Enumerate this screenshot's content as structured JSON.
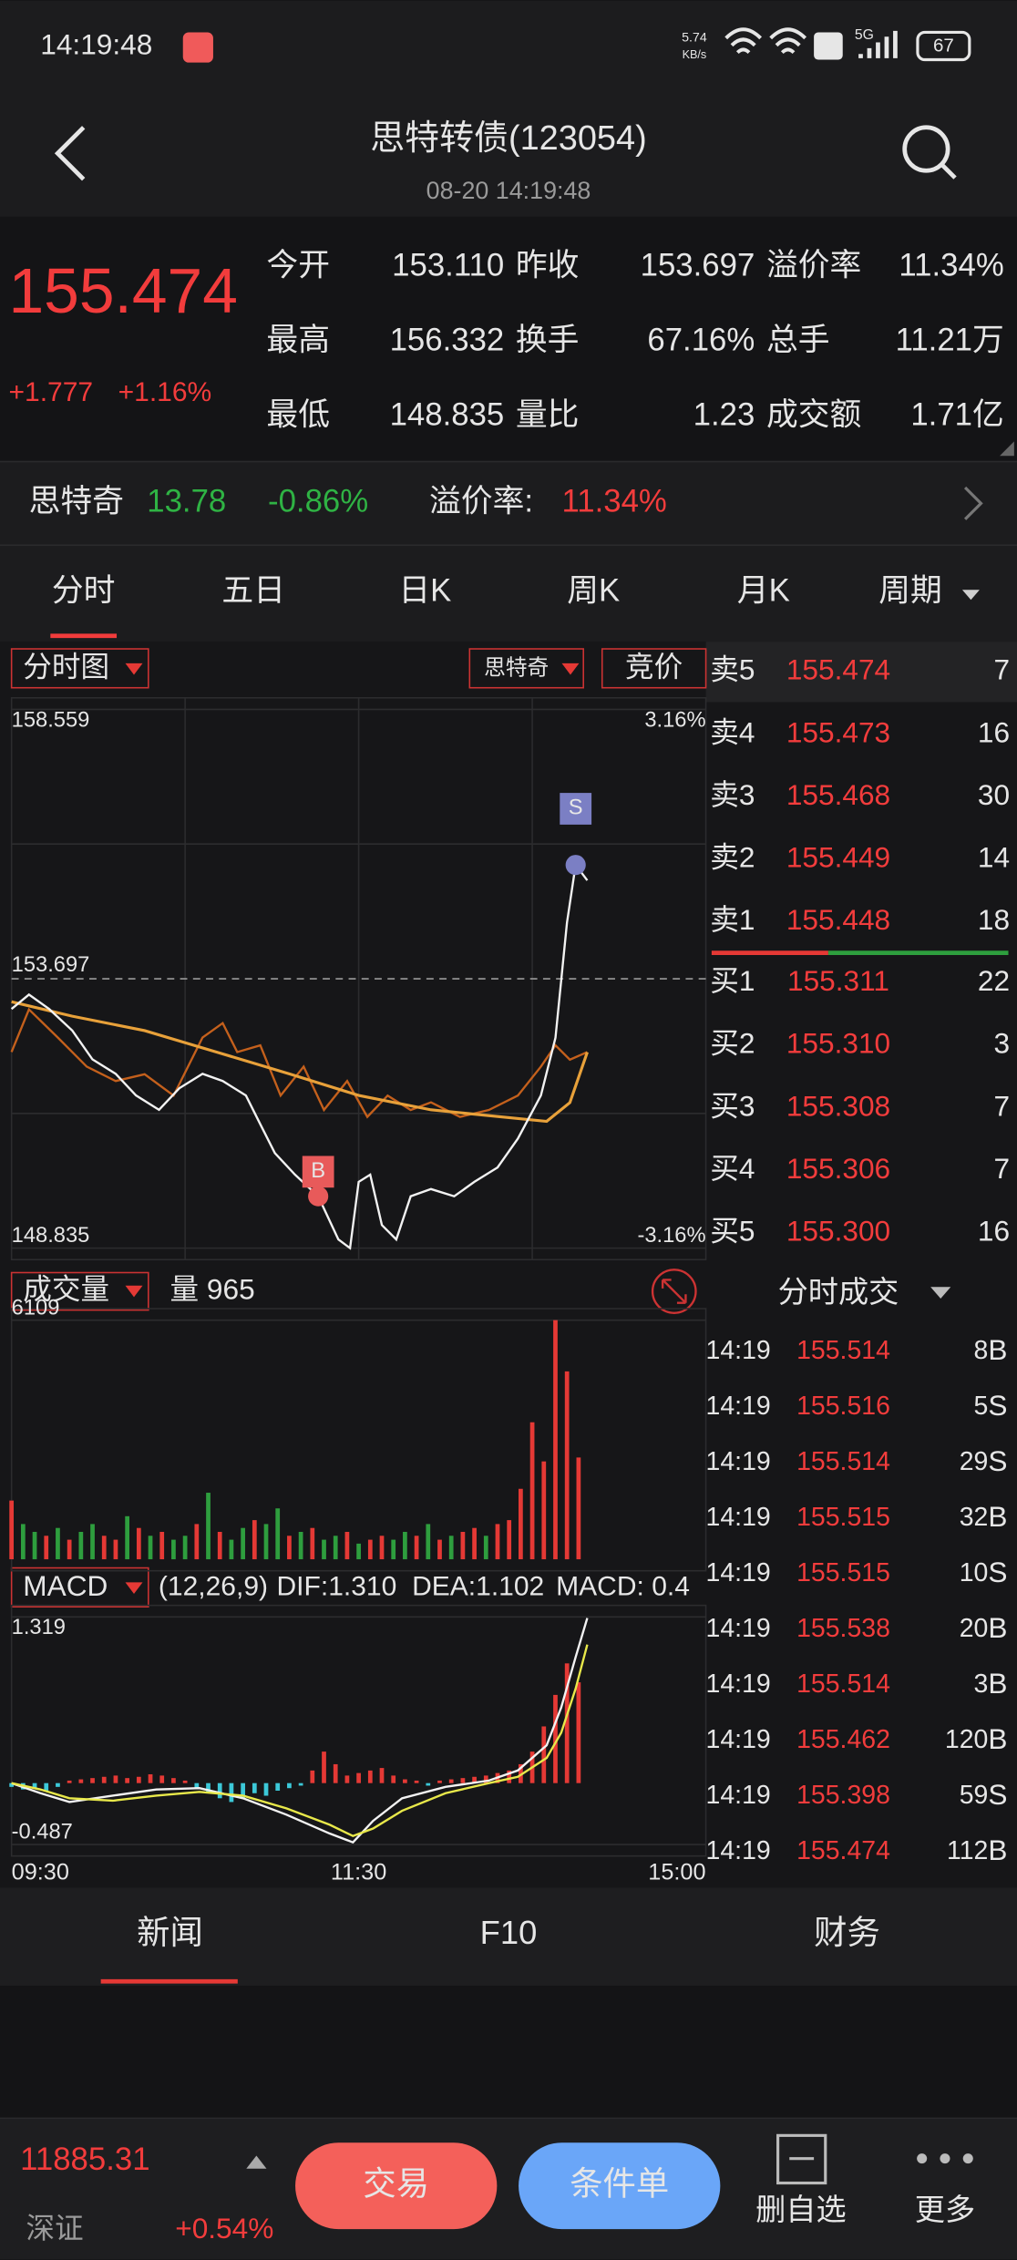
{
  "status": {
    "time": "14:19:48",
    "speed": "5.74",
    "speed_unit": "KB/s",
    "network": "5G",
    "battery": "67"
  },
  "header": {
    "title": "思特转债(123054)",
    "subtitle": "08-20 14:19:48"
  },
  "quote": {
    "price": "155.474",
    "change": "+1.777",
    "change_pct": "+1.16%",
    "fields": [
      {
        "label": "今开",
        "value": "153.110",
        "color": "#2fb344"
      },
      {
        "label": "昨收",
        "value": "153.697",
        "color": "#e6e6e6"
      },
      {
        "label": "溢价率",
        "value": "11.34%",
        "color": "#e6e6e6"
      },
      {
        "label": "最高",
        "value": "156.332",
        "color": "#f23c3c"
      },
      {
        "label": "换手",
        "value": "67.16%",
        "color": "#e6e6e6"
      },
      {
        "label": "总手",
        "value": "11.21万",
        "color": "#e6e6e6"
      },
      {
        "label": "最低",
        "value": "148.835",
        "color": "#2fb344"
      },
      {
        "label": "量比",
        "value": "1.23",
        "color": "#f23c3c"
      },
      {
        "label": "成交额",
        "value": "1.71亿",
        "color": "#e6e6e6"
      }
    ]
  },
  "stock": {
    "name": "思特奇",
    "price": "13.78",
    "change": "-0.86%",
    "premium_label": "溢价率:",
    "premium": "11.34%"
  },
  "tabs": {
    "items": [
      "分时",
      "五日",
      "日K",
      "周K",
      "月K",
      "周期"
    ],
    "active": 0
  },
  "chart_data": [
    {
      "type": "line",
      "selector": "分时图",
      "compare": "思特奇",
      "auction": "竞价",
      "xlim": [
        0,
        240
      ],
      "xgrid": [
        60,
        120,
        180
      ],
      "ylim": [
        148.835,
        158.559
      ],
      "yticks": [
        158.559,
        153.697,
        148.835
      ],
      "ygrid": [
        156.128,
        151.266
      ],
      "y2lim": [
        -3.16,
        3.16
      ],
      "y2ticks": [
        {
          "value": 3.16,
          "label": "3.16%"
        },
        {
          "value": -3.16,
          "label": "-3.16%"
        }
      ],
      "series": [
        {
          "color": "#f2f2f2",
          "x": [
            0,
            6,
            13,
            21,
            28,
            36,
            43,
            51,
            58,
            66,
            73,
            81,
            86,
            91,
            98,
            106,
            113,
            117,
            120,
            124,
            128,
            133,
            138,
            145,
            153,
            160,
            168,
            175,
            183,
            188,
            192,
            195,
            199
          ],
          "values": [
            153.151,
            153.411,
            153.151,
            152.761,
            152.241,
            151.981,
            151.591,
            151.331,
            151.721,
            151.981,
            151.851,
            151.591,
            151.071,
            150.551,
            150.161,
            149.771,
            148.991,
            148.835,
            150.031,
            150.161,
            149.251,
            148.991,
            149.771,
            149.901,
            149.771,
            150.031,
            150.291,
            150.811,
            151.591,
            152.631,
            154.711,
            155.751,
            155.474
          ]
        },
        {
          "color": "#e8a13a",
          "x": [
            0,
            21,
            46,
            71,
            96,
            120,
            145,
            170,
            185,
            193,
            199
          ],
          "values": [
            153.281,
            153.021,
            152.761,
            152.371,
            151.981,
            151.591,
            151.331,
            151.201,
            151.123,
            151.461,
            152.371
          ]
        },
        {
          "color": "#c4601c",
          "axis": "y2",
          "x": [
            0,
            6,
            16,
            26,
            36,
            46,
            56,
            66,
            73,
            78,
            86,
            93,
            101,
            108,
            116,
            123,
            130,
            138,
            145,
            155,
            165,
            175,
            183,
            188,
            193,
            199
          ],
          "values": [
            -0.86,
            -0.36,
            -0.69,
            -1.03,
            -1.2,
            -1.12,
            -1.37,
            -0.69,
            -0.52,
            -0.86,
            -0.78,
            -1.37,
            -1.03,
            -1.54,
            -1.2,
            -1.62,
            -1.37,
            -1.54,
            -1.45,
            -1.62,
            -1.54,
            -1.37,
            -1.03,
            -0.78,
            -0.95,
            -0.86
          ]
        }
      ],
      "annotations": [
        {
          "label": "B",
          "x": 106,
          "value": 149.771,
          "color": "#e85a5a"
        },
        {
          "label": "S",
          "x": 195,
          "value": 155.751,
          "color": "#7b7fc4"
        }
      ]
    },
    {
      "type": "bar",
      "selector": "成交量",
      "volume_label": "量 965",
      "xlim": [
        0,
        240
      ],
      "ylim": [
        0,
        6109
      ],
      "yticks": [
        6109
      ],
      "x": [
        0,
        4,
        8,
        12,
        16,
        20,
        24,
        28,
        32,
        36,
        40,
        44,
        48,
        52,
        56,
        60,
        64,
        68,
        72,
        76,
        80,
        84,
        88,
        92,
        96,
        100,
        104,
        108,
        112,
        116,
        120,
        124,
        128,
        132,
        136,
        140,
        144,
        148,
        152,
        156,
        160,
        164,
        168,
        172,
        176,
        180,
        184,
        188,
        192,
        196
      ],
      "values": [
        1500,
        900,
        700,
        600,
        800,
        500,
        700,
        900,
        600,
        500,
        1100,
        800,
        600,
        700,
        500,
        600,
        900,
        1700,
        700,
        500,
        800,
        1000,
        900,
        1300,
        600,
        700,
        800,
        500,
        600,
        700,
        400,
        500,
        600,
        500,
        700,
        600,
        900,
        500,
        600,
        700,
        800,
        600,
        900,
        1000,
        1800,
        3500,
        2500,
        6109,
        4800,
        2600
      ],
      "colors": [
        "#e53935",
        "#2e9e3e",
        "#2e9e3e",
        "#e53935",
        "#2e9e3e",
        "#e53935",
        "#2e9e3e",
        "#2e9e3e",
        "#e53935",
        "#e53935",
        "#2e9e3e",
        "#e53935",
        "#2e9e3e",
        "#e53935",
        "#2e9e3e",
        "#2e9e3e",
        "#e53935",
        "#2e9e3e",
        "#e53935",
        "#2e9e3e",
        "#2e9e3e",
        "#e53935",
        "#2e9e3e",
        "#2e9e3e",
        "#e53935",
        "#2e9e3e",
        "#e53935",
        "#2e9e3e",
        "#2e9e3e",
        "#e53935",
        "#2e9e3e",
        "#e53935",
        "#e53935",
        "#2e9e3e",
        "#2e9e3e",
        "#e53935",
        "#2e9e3e",
        "#e53935",
        "#2e9e3e",
        "#e53935",
        "#e53935",
        "#2e9e3e",
        "#e53935",
        "#e53935",
        "#e53935",
        "#e53935",
        "#e53935",
        "#e53935",
        "#e53935",
        "#e53935"
      ]
    },
    {
      "type": "macd",
      "selector": "MACD",
      "params": "(12,26,9)",
      "dif_label": "DIF:1.310",
      "dea_label": "DEA:1.102",
      "macd_label": "MACD: 0.4",
      "xlim": [
        0,
        240
      ],
      "xticks": [
        {
          "value": 0,
          "label": "09:30"
        },
        {
          "value": 120,
          "label": "11:30"
        },
        {
          "value": 240,
          "label": "15:00"
        }
      ],
      "ylim": [
        -0.487,
        1.319
      ],
      "yticks": [
        1.319,
        -0.487
      ],
      "pos_color": "#e53935",
      "neg_color": "#3cc8d8",
      "x": [
        0,
        4,
        8,
        12,
        16,
        20,
        24,
        28,
        32,
        36,
        40,
        44,
        48,
        52,
        56,
        60,
        64,
        68,
        72,
        76,
        80,
        84,
        88,
        92,
        96,
        100,
        104,
        108,
        112,
        116,
        120,
        124,
        128,
        132,
        136,
        140,
        144,
        148,
        152,
        156,
        160,
        164,
        168,
        172,
        176,
        180,
        184,
        188,
        192,
        196
      ],
      "values": [
        -0.03,
        -0.05,
        -0.04,
        -0.06,
        -0.03,
        0.02,
        0.03,
        0.04,
        0.05,
        0.06,
        0.04,
        0.05,
        0.07,
        0.06,
        0.04,
        0.02,
        -0.04,
        -0.08,
        -0.12,
        -0.15,
        -0.12,
        -0.08,
        -0.1,
        -0.06,
        -0.04,
        -0.02,
        0.1,
        0.25,
        0.15,
        0.06,
        0.08,
        0.1,
        0.12,
        0.06,
        0.03,
        0.02,
        -0.02,
        0.02,
        0.03,
        0.04,
        0.05,
        0.06,
        0.08,
        0.1,
        0.15,
        0.25,
        0.45,
        0.7,
        0.95,
        0.8
      ],
      "series": [
        {
          "color": "#f2f2f2",
          "x": [
            0,
            10,
            20,
            35,
            50,
            65,
            80,
            95,
            110,
            118,
            125,
            135,
            150,
            165,
            175,
            185,
            190,
            195,
            199
          ],
          "values": [
            0,
            -0.08,
            -0.15,
            -0.1,
            -0.05,
            -0.04,
            -0.12,
            -0.25,
            -0.4,
            -0.47,
            -0.3,
            -0.12,
            -0.03,
            0.02,
            0.1,
            0.3,
            0.6,
            1.0,
            1.31
          ]
        },
        {
          "color": "#e8e84a",
          "x": [
            0,
            10,
            20,
            35,
            50,
            65,
            80,
            95,
            110,
            118,
            125,
            135,
            150,
            165,
            175,
            185,
            190,
            195,
            199
          ],
          "values": [
            0,
            -0.05,
            -0.12,
            -0.14,
            -0.1,
            -0.07,
            -0.1,
            -0.2,
            -0.33,
            -0.42,
            -0.36,
            -0.22,
            -0.08,
            0.0,
            0.05,
            0.2,
            0.4,
            0.75,
            1.1
          ]
        }
      ]
    }
  ],
  "orderbook": {
    "asks": [
      {
        "label": "卖5",
        "price": "155.474",
        "qty": "7"
      },
      {
        "label": "卖4",
        "price": "155.473",
        "qty": "16"
      },
      {
        "label": "卖3",
        "price": "155.468",
        "qty": "30"
      },
      {
        "label": "卖2",
        "price": "155.449",
        "qty": "14"
      },
      {
        "label": "卖1",
        "price": "155.448",
        "qty": "18"
      }
    ],
    "bids": [
      {
        "label": "买1",
        "price": "155.311",
        "qty": "22"
      },
      {
        "label": "买2",
        "price": "155.310",
        "qty": "3"
      },
      {
        "label": "买3",
        "price": "155.308",
        "qty": "7"
      },
      {
        "label": "买4",
        "price": "155.306",
        "qty": "7"
      },
      {
        "label": "买5",
        "price": "155.300",
        "qty": "16"
      }
    ]
  },
  "trades": {
    "title": "分时成交",
    "rows": [
      {
        "time": "14:19",
        "price": "155.514",
        "qty": "8",
        "side": "B"
      },
      {
        "time": "14:19",
        "price": "155.516",
        "qty": "5",
        "side": "S"
      },
      {
        "time": "14:19",
        "price": "155.514",
        "qty": "29",
        "side": "S"
      },
      {
        "time": "14:19",
        "price": "155.515",
        "qty": "32",
        "side": "B"
      },
      {
        "time": "14:19",
        "price": "155.515",
        "qty": "10",
        "side": "S"
      },
      {
        "time": "14:19",
        "price": "155.538",
        "qty": "20",
        "side": "B"
      },
      {
        "time": "14:19",
        "price": "155.514",
        "qty": "3",
        "side": "B"
      },
      {
        "time": "14:19",
        "price": "155.462",
        "qty": "120",
        "side": "B"
      },
      {
        "time": "14:19",
        "price": "155.398",
        "qty": "59",
        "side": "S"
      },
      {
        "time": "14:19",
        "price": "155.474",
        "qty": "112",
        "side": "B"
      }
    ]
  },
  "bottom_tabs": {
    "items": [
      "新闻",
      "F10",
      "财务"
    ],
    "active": 0
  },
  "footer": {
    "index_value": "11885.31",
    "index_name": "深证",
    "index_change": "+0.54%",
    "trade": "交易",
    "conditional": "条件单",
    "remove": "删自选",
    "more": "更多"
  }
}
